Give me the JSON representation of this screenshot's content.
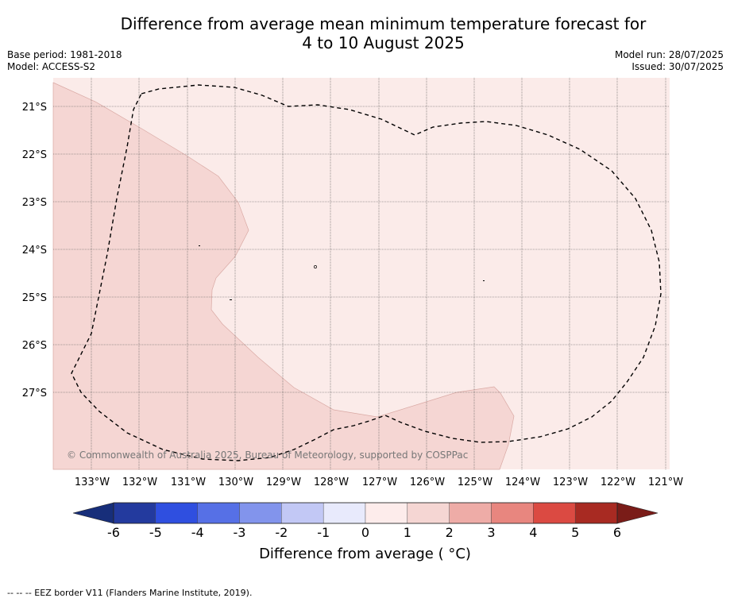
{
  "title_line1": "Difference from average mean minimum temperature forecast for",
  "title_line2": "4 to 10 August 2025",
  "meta_left": [
    "Base period: 1981-2018",
    "Model: ACCESS-S2"
  ],
  "meta_right": [
    "Model run: 28/07/2025",
    "Issued: 30/07/2025"
  ],
  "map": {
    "lat_labels": [
      "21°S",
      "22°S",
      "23°S",
      "24°S",
      "25°S",
      "26°S",
      "27°S"
    ],
    "lon_labels": [
      "133°W",
      "132°W",
      "131°W",
      "130°W",
      "129°W",
      "128°W",
      "127°W",
      "126°W",
      "125°W",
      "124°W",
      "123°W",
      "122°W",
      "121°W"
    ],
    "copyright": "© Commonwealth of Australia 2025, Bureau of Meteorology, supported by COSPPac",
    "colors": {
      "ocean_0_1": "#fbebe9",
      "ocean_1_2": "#f5d6d3",
      "gridline": "#555555",
      "eez_border": "#000000"
    }
  },
  "colorbar": {
    "ticks": [
      "-6",
      "-5",
      "-4",
      "-3",
      "-2",
      "-1",
      "0",
      "1",
      "2",
      "3",
      "4",
      "5",
      "6"
    ],
    "colors": [
      "#233a9e",
      "#2f4fe0",
      "#5670e6",
      "#8294ec",
      "#c2c8f5",
      "#e8eafc",
      "#fdeceb",
      "#f5d6d3",
      "#eeaca7",
      "#e8867f",
      "#db4a42",
      "#a82a22"
    ],
    "under_color": "#172e7a",
    "over_color": "#7a1c18",
    "label": "Difference from average ( °C)"
  },
  "footer": "-- -- -- EEZ border V11 (Flanders Marine Institute, 2019)."
}
